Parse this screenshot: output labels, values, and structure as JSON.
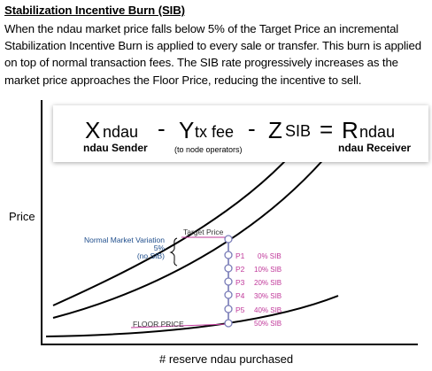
{
  "heading": "Stabilization Incentive Burn (SIB)",
  "description_lines": [
    "When the ndau market price falls below 5% of the Target Price an incremental",
    "Stabilization Incentive Burn is applied to every sale or transfer.  This burn is applied",
    "on top of normal transaction fees. The SIB rate progressively increases as the",
    "market price approaches the Floor Price, reducing the incentive to sell."
  ],
  "equation": {
    "x_var": "X",
    "x_unit": "ndau",
    "minus1": "-",
    "y_var": "Y",
    "y_unit": "tx fee",
    "minus2": "-",
    "z_var": "Z",
    "z_unit": "SIB",
    "equals": "=",
    "r_var": "R",
    "r_unit": "ndau",
    "sender_label": "ndau Sender",
    "fee_note": "(to node operators)",
    "receiver_label": "ndau Receiver"
  },
  "chart": {
    "y_axis_label": "Price",
    "x_axis_label": "# reserve ndau purchased",
    "target_price_label": "Target Price",
    "floor_price_label": "FLOOR PRICE",
    "nmv_lines": [
      "Normal Market Variation",
      "5%",
      "(no SIB)"
    ],
    "points": [
      {
        "label": "P1",
        "sib": "0% SIB"
      },
      {
        "label": "P2",
        "sib": "10% SIB"
      },
      {
        "label": "P3",
        "sib": "20% SIB"
      },
      {
        "label": "P4",
        "sib": "30% SIB"
      },
      {
        "label": "P5",
        "sib": "40% SIB"
      },
      {
        "label": "",
        "sib": "50% SIB"
      }
    ]
  },
  "colors": {
    "sib": "#c0389a",
    "nmv": "#1f4e8c",
    "marker_stroke": "#7a7db8",
    "marker_line": "#6b6fb0"
  }
}
